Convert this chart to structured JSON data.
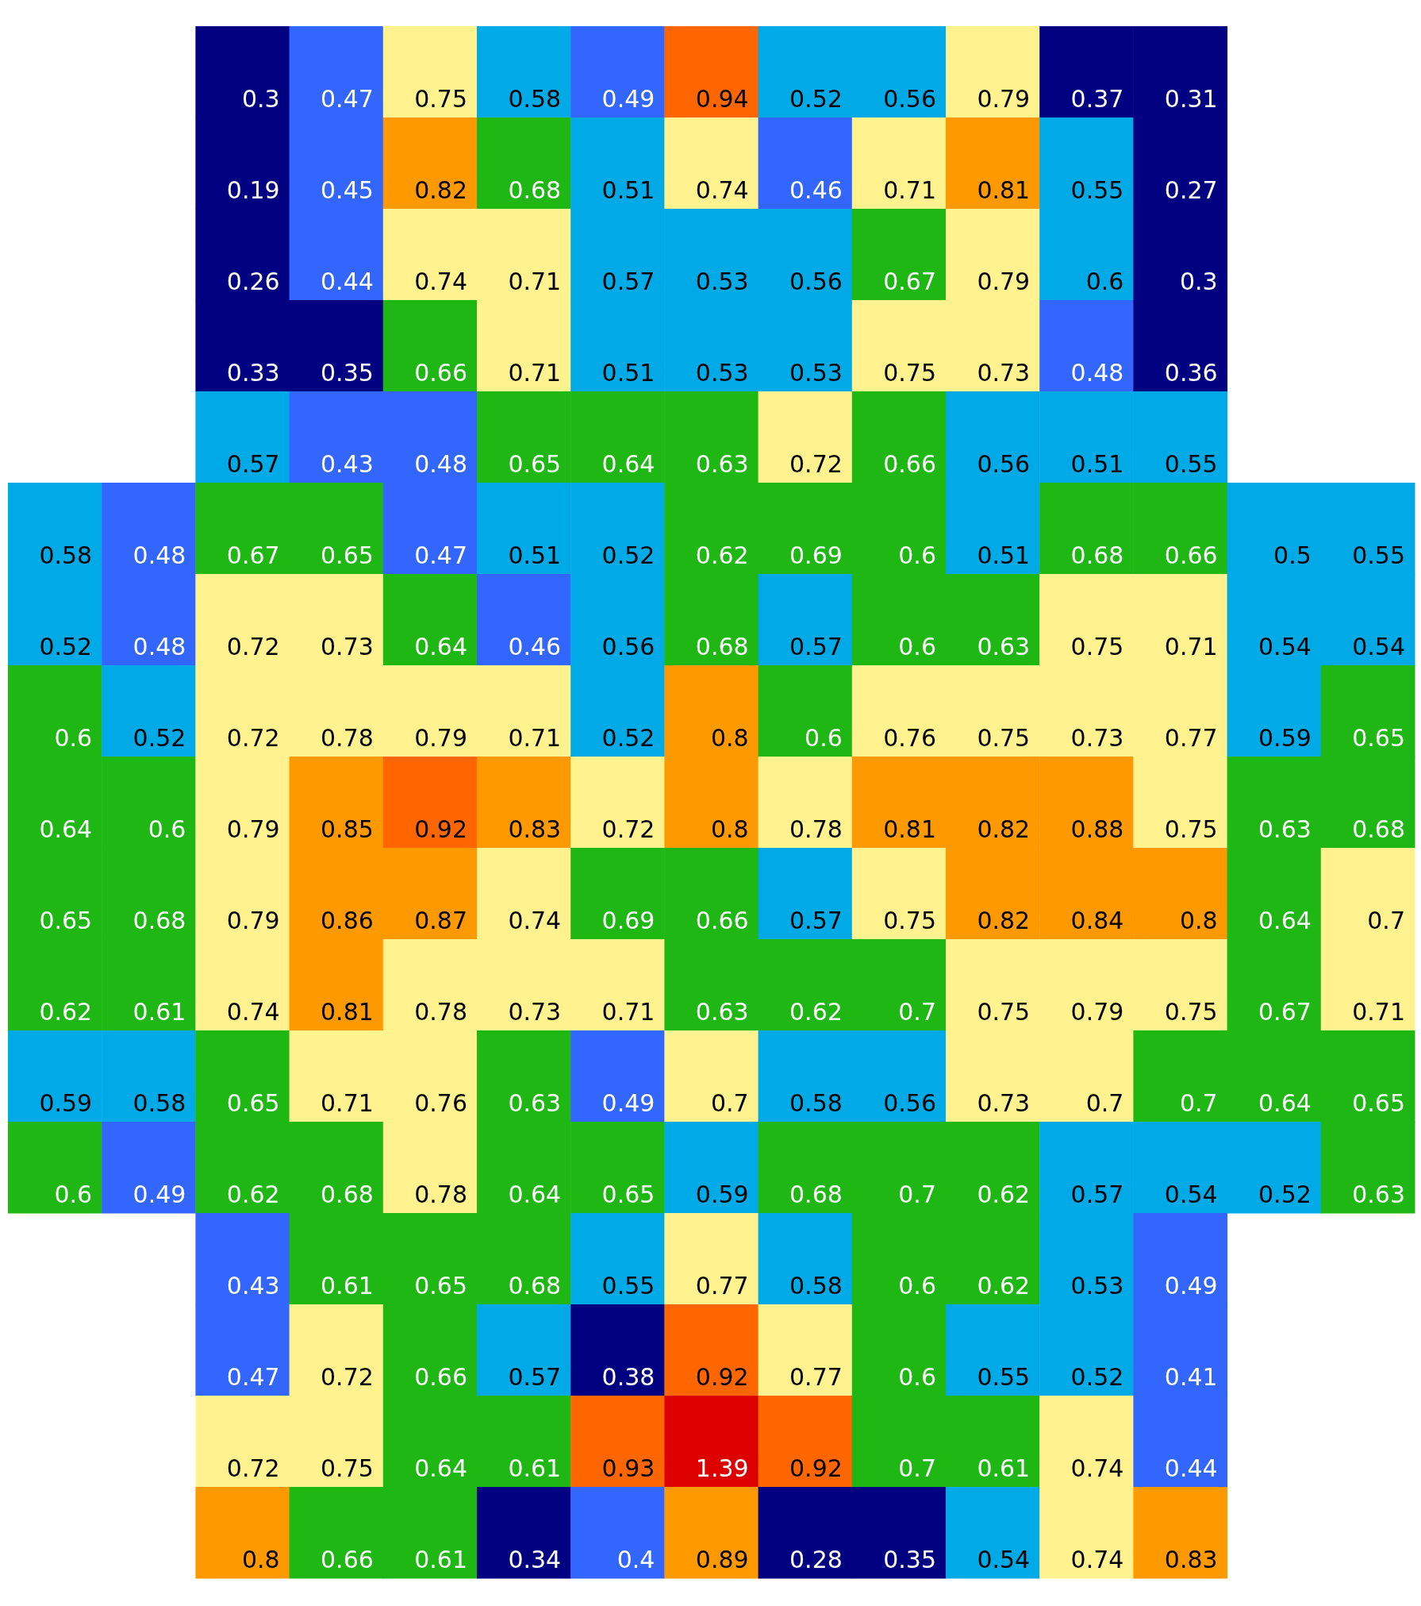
{
  "chart_data": {
    "type": "heatmap",
    "tick_labels": false,
    "data_labels": true,
    "categories": [
      null,
      null,
      null,
      null,
      null,
      null,
      null,
      null,
      null,
      null,
      null,
      null,
      null,
      null,
      null
    ],
    "y_categories": [
      null,
      null,
      null,
      null,
      null,
      null,
      null,
      null,
      null,
      null,
      null,
      null,
      null,
      null,
      null,
      null,
      null
    ],
    "cells": [
      [
        null,
        null,
        0.3,
        0.47,
        0.75,
        0.58,
        0.49,
        0.94,
        0.52,
        0.56,
        0.79,
        0.37,
        0.31,
        null,
        null
      ],
      [
        null,
        null,
        0.19,
        0.45,
        0.82,
        0.68,
        0.51,
        0.74,
        0.46,
        0.71,
        0.81,
        0.55,
        0.27,
        null,
        null
      ],
      [
        null,
        null,
        0.26,
        0.44,
        0.74,
        0.71,
        0.57,
        0.53,
        0.56,
        0.67,
        0.79,
        0.6,
        0.3,
        null,
        null
      ],
      [
        null,
        null,
        0.33,
        0.35,
        0.66,
        0.71,
        0.51,
        0.53,
        0.53,
        0.75,
        0.73,
        0.48,
        0.36,
        null,
        null
      ],
      [
        null,
        null,
        0.57,
        0.43,
        0.48,
        0.65,
        0.64,
        0.63,
        0.72,
        0.66,
        0.56,
        0.51,
        0.55,
        null,
        null
      ],
      [
        0.58,
        0.48,
        0.67,
        0.65,
        0.47,
        0.51,
        0.52,
        0.62,
        0.69,
        0.6,
        0.51,
        0.68,
        0.66,
        0.5,
        0.55
      ],
      [
        0.52,
        0.48,
        0.72,
        0.73,
        0.64,
        0.46,
        0.56,
        0.68,
        0.57,
        0.6,
        0.63,
        0.75,
        0.71,
        0.54,
        0.54
      ],
      [
        0.6,
        0.52,
        0.72,
        0.78,
        0.79,
        0.71,
        0.52,
        0.8,
        0.6,
        0.76,
        0.75,
        0.73,
        0.77,
        0.59,
        0.65
      ],
      [
        0.64,
        0.6,
        0.79,
        0.85,
        0.92,
        0.83,
        0.72,
        0.8,
        0.78,
        0.81,
        0.82,
        0.88,
        0.75,
        0.63,
        0.68
      ],
      [
        0.65,
        0.68,
        0.79,
        0.86,
        0.87,
        0.74,
        0.69,
        0.66,
        0.57,
        0.75,
        0.82,
        0.84,
        0.8,
        0.64,
        0.7
      ],
      [
        0.62,
        0.61,
        0.74,
        0.81,
        0.78,
        0.73,
        0.71,
        0.63,
        0.62,
        0.7,
        0.75,
        0.79,
        0.75,
        0.67,
        0.71
      ],
      [
        0.59,
        0.58,
        0.65,
        0.71,
        0.76,
        0.63,
        0.49,
        0.7,
        0.58,
        0.56,
        0.73,
        0.7,
        0.7,
        0.64,
        0.65
      ],
      [
        0.6,
        0.49,
        0.62,
        0.68,
        0.78,
        0.64,
        0.65,
        0.59,
        0.68,
        0.7,
        0.62,
        0.57,
        0.54,
        0.52,
        0.63
      ],
      [
        null,
        null,
        0.43,
        0.61,
        0.65,
        0.68,
        0.55,
        0.77,
        0.58,
        0.6,
        0.62,
        0.53,
        0.49,
        null,
        null
      ],
      [
        null,
        null,
        0.47,
        0.72,
        0.66,
        0.57,
        0.38,
        0.92,
        0.77,
        0.6,
        0.55,
        0.52,
        0.41,
        null,
        null
      ],
      [
        null,
        null,
        0.72,
        0.75,
        0.64,
        0.61,
        0.93,
        1.39,
        0.92,
        0.7,
        0.61,
        0.74,
        0.44,
        null,
        null
      ],
      [
        null,
        null,
        0.8,
        0.66,
        0.61,
        0.34,
        0.4,
        0.89,
        0.28,
        0.35,
        0.54,
        0.74,
        0.83,
        null,
        null
      ]
    ],
    "colors": [
      [
        null,
        null,
        "#000080",
        "#3366ff",
        "#fff28f",
        "#00aae6",
        "#3366ff",
        "#ff6600",
        "#00aae6",
        "#00aae6",
        "#fff28f",
        "#000080",
        "#000080",
        null,
        null
      ],
      [
        null,
        null,
        "#000080",
        "#3366ff",
        "#ff9900",
        "#1fb714",
        "#00aae6",
        "#fff28f",
        "#3366ff",
        "#fff28f",
        "#ff9900",
        "#00aae6",
        "#000080",
        null,
        null
      ],
      [
        null,
        null,
        "#000080",
        "#3366ff",
        "#fff28f",
        "#fff28f",
        "#00aae6",
        "#00aae6",
        "#00aae6",
        "#1fb714",
        "#fff28f",
        "#00aae6",
        "#000080",
        null,
        null
      ],
      [
        null,
        null,
        "#000080",
        "#000080",
        "#1fb714",
        "#fff28f",
        "#00aae6",
        "#00aae6",
        "#00aae6",
        "#fff28f",
        "#fff28f",
        "#3366ff",
        "#000080",
        null,
        null
      ],
      [
        null,
        null,
        "#00aae6",
        "#3366ff",
        "#3366ff",
        "#1fb714",
        "#1fb714",
        "#1fb714",
        "#fff28f",
        "#1fb714",
        "#00aae6",
        "#00aae6",
        "#00aae6",
        null,
        null
      ],
      [
        "#00aae6",
        "#3366ff",
        "#1fb714",
        "#1fb714",
        "#3366ff",
        "#00aae6",
        "#00aae6",
        "#1fb714",
        "#1fb714",
        "#1fb714",
        "#00aae6",
        "#1fb714",
        "#1fb714",
        "#00aae6",
        "#00aae6"
      ],
      [
        "#00aae6",
        "#3366ff",
        "#fff28f",
        "#fff28f",
        "#1fb714",
        "#3366ff",
        "#00aae6",
        "#1fb714",
        "#00aae6",
        "#1fb714",
        "#1fb714",
        "#fff28f",
        "#fff28f",
        "#00aae6",
        "#00aae6"
      ],
      [
        "#1fb714",
        "#00aae6",
        "#fff28f",
        "#fff28f",
        "#fff28f",
        "#fff28f",
        "#00aae6",
        "#ff9900",
        "#1fb714",
        "#fff28f",
        "#fff28f",
        "#fff28f",
        "#fff28f",
        "#00aae6",
        "#1fb714"
      ],
      [
        "#1fb714",
        "#1fb714",
        "#fff28f",
        "#ff9900",
        "#ff6600",
        "#ff9900",
        "#fff28f",
        "#ff9900",
        "#fff28f",
        "#ff9900",
        "#ff9900",
        "#ff9900",
        "#fff28f",
        "#1fb714",
        "#1fb714"
      ],
      [
        "#1fb714",
        "#1fb714",
        "#fff28f",
        "#ff9900",
        "#ff9900",
        "#fff28f",
        "#1fb714",
        "#1fb714",
        "#00aae6",
        "#fff28f",
        "#ff9900",
        "#ff9900",
        "#ff9900",
        "#1fb714",
        "#fff28f"
      ],
      [
        "#1fb714",
        "#1fb714",
        "#fff28f",
        "#ff9900",
        "#fff28f",
        "#fff28f",
        "#fff28f",
        "#1fb714",
        "#1fb714",
        "#1fb714",
        "#fff28f",
        "#fff28f",
        "#fff28f",
        "#1fb714",
        "#fff28f"
      ],
      [
        "#00aae6",
        "#00aae6",
        "#1fb714",
        "#fff28f",
        "#fff28f",
        "#1fb714",
        "#3366ff",
        "#fff28f",
        "#00aae6",
        "#00aae6",
        "#fff28f",
        "#fff28f",
        "#1fb714",
        "#1fb714",
        "#1fb714"
      ],
      [
        "#1fb714",
        "#3366ff",
        "#1fb714",
        "#1fb714",
        "#fff28f",
        "#1fb714",
        "#1fb714",
        "#00aae6",
        "#1fb714",
        "#1fb714",
        "#1fb714",
        "#00aae6",
        "#00aae6",
        "#00aae6",
        "#1fb714"
      ],
      [
        null,
        null,
        "#3366ff",
        "#1fb714",
        "#1fb714",
        "#1fb714",
        "#00aae6",
        "#fff28f",
        "#00aae6",
        "#1fb714",
        "#1fb714",
        "#00aae6",
        "#3366ff",
        null,
        null
      ],
      [
        null,
        null,
        "#3366ff",
        "#fff28f",
        "#1fb714",
        "#00aae6",
        "#000080",
        "#ff6600",
        "#fff28f",
        "#1fb714",
        "#00aae6",
        "#00aae6",
        "#3366ff",
        null,
        null
      ],
      [
        null,
        null,
        "#fff28f",
        "#fff28f",
        "#1fb714",
        "#1fb714",
        "#ff6600",
        "#dd0000",
        "#ff6600",
        "#1fb714",
        "#1fb714",
        "#fff28f",
        "#3366ff",
        null,
        null
      ],
      [
        null,
        null,
        "#ff9900",
        "#1fb714",
        "#1fb714",
        "#000080",
        "#3366ff",
        "#ff9900",
        "#000080",
        "#000080",
        "#00aae6",
        "#fff28f",
        "#ff9900",
        null,
        null
      ]
    ]
  }
}
